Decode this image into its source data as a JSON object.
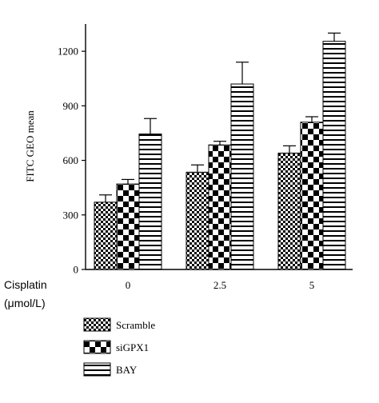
{
  "chart_data": {
    "type": "bar",
    "ylabel": "FITC GEO mean",
    "ylim": [
      0,
      1350
    ],
    "yticks": [
      "0",
      "300",
      "600",
      "900",
      "1200"
    ],
    "ytick_values": [
      0,
      300,
      600,
      900,
      1200
    ],
    "xaxis_title_line1": "Cisplatin",
    "xaxis_title_line2": "(μmol/L)",
    "categories": [
      "0",
      "2.5",
      "5"
    ],
    "series": [
      {
        "name": "Scramble",
        "pattern": "fine-checker",
        "values": [
          370,
          535,
          640
        ],
        "errors": [
          40,
          40,
          40
        ]
      },
      {
        "name": "siGPX1",
        "pattern": "coarse-checker",
        "values": [
          470,
          685,
          810
        ],
        "errors": [
          25,
          20,
          30
        ]
      },
      {
        "name": "BAY",
        "pattern": "horizontal-stripes",
        "values": [
          745,
          1020,
          1255
        ],
        "errors": [
          85,
          120,
          45
        ]
      }
    ],
    "legend_position": "bottom-left",
    "grid": false
  }
}
